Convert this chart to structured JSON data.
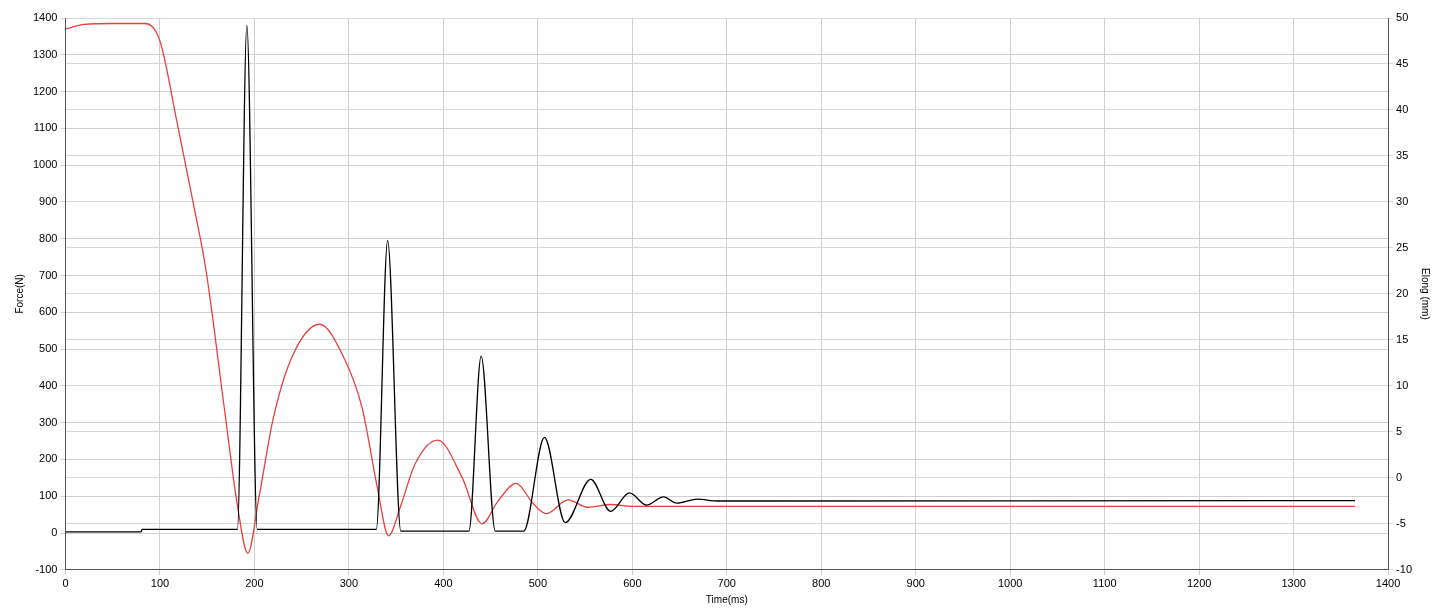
{
  "chart_data": {
    "type": "line",
    "xlabel": "Time(ms)",
    "ylabel": "Force(N)",
    "y2label": "Elong (mm)",
    "xlim": [
      0,
      1400
    ],
    "xticks": [
      0,
      100,
      200,
      300,
      400,
      500,
      600,
      700,
      800,
      900,
      1000,
      1100,
      1200,
      1300,
      1400
    ],
    "ylim": [
      -100,
      1400
    ],
    "yticks": [
      -100,
      0,
      100,
      200,
      300,
      400,
      500,
      600,
      700,
      800,
      900,
      1000,
      1100,
      1200,
      1300,
      1400
    ],
    "y2lim": [
      -10,
      50
    ],
    "y2ticks": [
      -10,
      -5,
      0,
      5,
      10,
      15,
      20,
      25,
      30,
      35,
      40,
      45,
      50
    ],
    "grid": true,
    "legend": false,
    "marker": "none",
    "line_style": "solid",
    "series": [
      {
        "color": "#000000",
        "axis": "y",
        "x": [
          0,
          80,
          81,
          182,
          192,
          203,
          329,
          341,
          355,
          427,
          440,
          455,
          485,
          507,
          529,
          556,
          577,
          597,
          615,
          633,
          647,
          669,
          690,
          1365
        ],
        "values": [
          3,
          3,
          10,
          10,
          1380,
          10,
          10,
          795,
          5,
          5,
          481,
          5,
          5,
          260,
          28,
          146,
          59,
          109,
          76,
          98,
          81,
          92,
          87,
          88
        ]
      },
      {
        "color": "#e8403f",
        "axis": "y2",
        "x": [
          0,
          20,
          50,
          84,
          100,
          118,
          135,
          149,
          168,
          182,
          193,
          205,
          220,
          240,
          269,
          295,
          314,
          330,
          342,
          355,
          370,
          394,
          420,
          441,
          458,
          477,
          495,
          509,
          532,
          553,
          577,
          600,
          700,
          1000,
          1365
        ],
        "values": [
          48.8,
          49.3,
          49.4,
          49.4,
          47.5,
          38.7,
          30,
          22.4,
          7.7,
          -3,
          -8.2,
          -2,
          6.5,
          13.2,
          16.7,
          13,
          7.6,
          -1,
          -6.3,
          -3,
          1.5,
          4.1,
          0,
          -5.0,
          -2.5,
          -0.6,
          -2.8,
          -3.9,
          -2.4,
          -3.2,
          -2.9,
          -3.1,
          -3.1,
          -3.1,
          -3.1
        ]
      }
    ]
  }
}
